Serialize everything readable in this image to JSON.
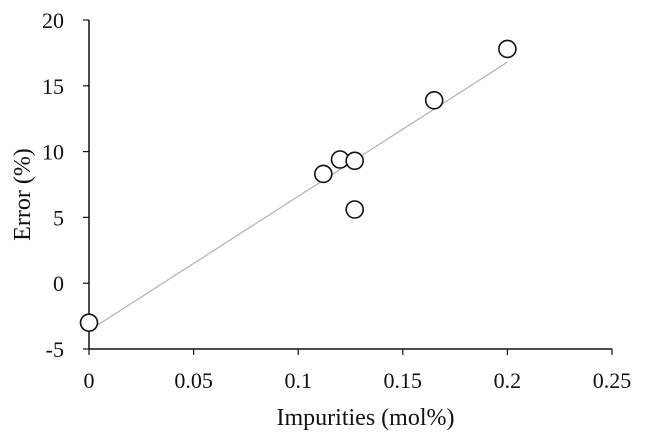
{
  "chart_data": {
    "type": "scatter",
    "title": "",
    "xlabel": "Impurities (mol%)",
    "ylabel": "Error (%)",
    "xlim": [
      0,
      0.25
    ],
    "ylim": [
      -5,
      20
    ],
    "x_ticks": [
      0,
      0.05,
      0.1,
      0.15,
      0.2,
      0.25
    ],
    "y_ticks": [
      -5,
      0,
      5,
      10,
      15,
      20
    ],
    "x_tick_labels": [
      "0",
      "0.05",
      "0.1",
      "0.15",
      "0.2",
      "0.25"
    ],
    "y_tick_labels": [
      "-5",
      "0",
      "5",
      "10",
      "15",
      "20"
    ],
    "grid": false,
    "legend": "none",
    "series": [
      {
        "marker": "open-circle",
        "points": [
          {
            "x": 0.0,
            "y": -3.0
          },
          {
            "x": 0.112,
            "y": 8.3
          },
          {
            "x": 0.12,
            "y": 9.4
          },
          {
            "x": 0.127,
            "y": 9.3
          },
          {
            "x": 0.127,
            "y": 5.6
          },
          {
            "x": 0.165,
            "y": 13.9
          },
          {
            "x": 0.2,
            "y": 17.8
          }
        ]
      }
    ],
    "trendline": {
      "type": "linear",
      "from": {
        "x": 0.0,
        "y": -3.6
      },
      "to": {
        "x": 0.2,
        "y": 16.8
      }
    },
    "colors": {
      "axis": "#111111",
      "marker_stroke": "#111111",
      "marker_fill": "#ffffff",
      "trendline": "#b0b0b0"
    }
  }
}
